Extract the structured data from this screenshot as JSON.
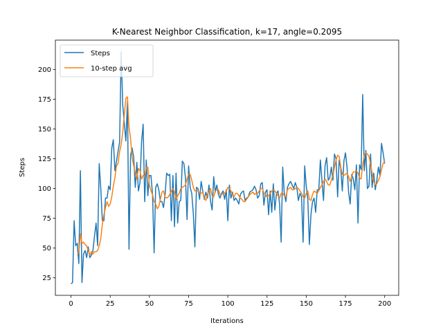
{
  "chart_data": {
    "type": "line",
    "title": "K-Nearest Neighbor Classification, k=17, angle=0.2095",
    "xlabel": "Iterations",
    "ylabel": "Steps",
    "xlim": [
      -9.95,
      208.95
    ],
    "ylim": [
      10.3,
      224.7
    ],
    "xticks": [
      0,
      25,
      50,
      75,
      100,
      125,
      150,
      175,
      200
    ],
    "yticks": [
      25,
      50,
      75,
      100,
      125,
      150,
      175,
      200
    ],
    "grid": false,
    "legend_position": "upper left",
    "series": [
      {
        "name": "Steps",
        "color": "#1f77b4",
        "x_start": 0,
        "values": [
          20,
          21,
          73,
          52,
          54,
          37,
          115,
          21,
          45,
          48,
          42,
          51,
          42,
          44,
          48,
          60,
          71,
          52,
          121,
          100,
          73,
          73,
          92,
          92,
          102,
          99,
          134,
          141,
          115,
          123,
          131,
          139,
          215,
          170,
          155,
          140,
          173,
          49,
          128,
          134,
          126,
          101,
          122,
          98,
          105,
          139,
          154,
          89,
          124,
          94,
          111,
          111,
          95,
          46,
          101,
          104,
          99,
          89,
          89,
          84,
          95,
          113,
          111,
          112,
          73,
          111,
          68,
          113,
          71,
          89,
          90,
          123,
          121,
          109,
          74,
          119,
          101,
          96,
          79,
          51,
          101,
          100,
          91,
          106,
          98,
          91,
          97,
          92,
          103,
          89,
          82,
          110,
          97,
          103,
          95,
          92,
          96,
          98,
          91,
          99,
          73,
          103,
          92,
          97,
          90,
          92,
          90,
          87,
          95,
          97,
          98,
          90,
          92,
          93,
          97,
          98,
          99,
          102,
          99,
          92,
          94,
          104,
          105,
          86,
          97,
          99,
          78,
          98,
          80,
          104,
          82,
          96,
          98,
          87,
          55,
          118,
          96,
          89,
          101,
          104,
          106,
          103,
          100,
          105,
          101,
          90,
          96,
          93,
          55,
          119,
          102,
          91,
          53,
          78,
          89,
          92,
          80,
          99,
          99,
          124,
          107,
          90,
          119,
          126,
          107,
          109,
          118,
          107,
          129,
          125,
          93,
          124,
          117,
          98,
          123,
          130,
          118,
          97,
          87,
          112,
          108,
          99,
          120,
          71,
          120,
          116,
          179,
          115,
          132,
          100,
          102,
          129,
          101,
          113,
          99,
          107,
          118,
          111,
          138,
          130,
          121
        ]
      },
      {
        "name": "10-step avg",
        "color": "#ff7f0e",
        "x_start": 4,
        "values": [
          44,
          46,
          62,
          54,
          55,
          53,
          52,
          48,
          44,
          47,
          45,
          47,
          47,
          48,
          52,
          58,
          70,
          78,
          84,
          89,
          85,
          87,
          93,
          102,
          109,
          119,
          121,
          131,
          137,
          147,
          162,
          176,
          177,
          152,
          142,
          126,
          119,
          113,
          108,
          117,
          115,
          108,
          111,
          110,
          118,
          118,
          103,
          98,
          95,
          89,
          87,
          83,
          85,
          91,
          97,
          98,
          93,
          92,
          93,
          95,
          98,
          100,
          97,
          91,
          94,
          96,
          100,
          101,
          102,
          103,
          108,
          112,
          112,
          107,
          101,
          98,
          98,
          98,
          96,
          96,
          97,
          92,
          90,
          95,
          98,
          100,
          94,
          93,
          98,
          99,
          99,
          95,
          95,
          96,
          96,
          98,
          101,
          100,
          98,
          95,
          93,
          96,
          96,
          94,
          92,
          91,
          89,
          89,
          91,
          93,
          95,
          96,
          97,
          95,
          96,
          96,
          98,
          100,
          100,
          96,
          95,
          93,
          94,
          96,
          98,
          99,
          98,
          96,
          94,
          92,
          96,
          96,
          94,
          93,
          99,
          100,
          101,
          99,
          99,
          100,
          101,
          100,
          98,
          96,
          93,
          92,
          96,
          98,
          91,
          90,
          95,
          98,
          97,
          96,
          98,
          101,
          103,
          106,
          108,
          106,
          103,
          103,
          107,
          111,
          118,
          124,
          128,
          127,
          118,
          112,
          111,
          112,
          113,
          110,
          106,
          110,
          114,
          114,
          115,
          113,
          109,
          108,
          120,
          128,
          130,
          129,
          127,
          121,
          113,
          106,
          103,
          104,
          107,
          110,
          116,
          121,
          123
        ]
      }
    ]
  }
}
